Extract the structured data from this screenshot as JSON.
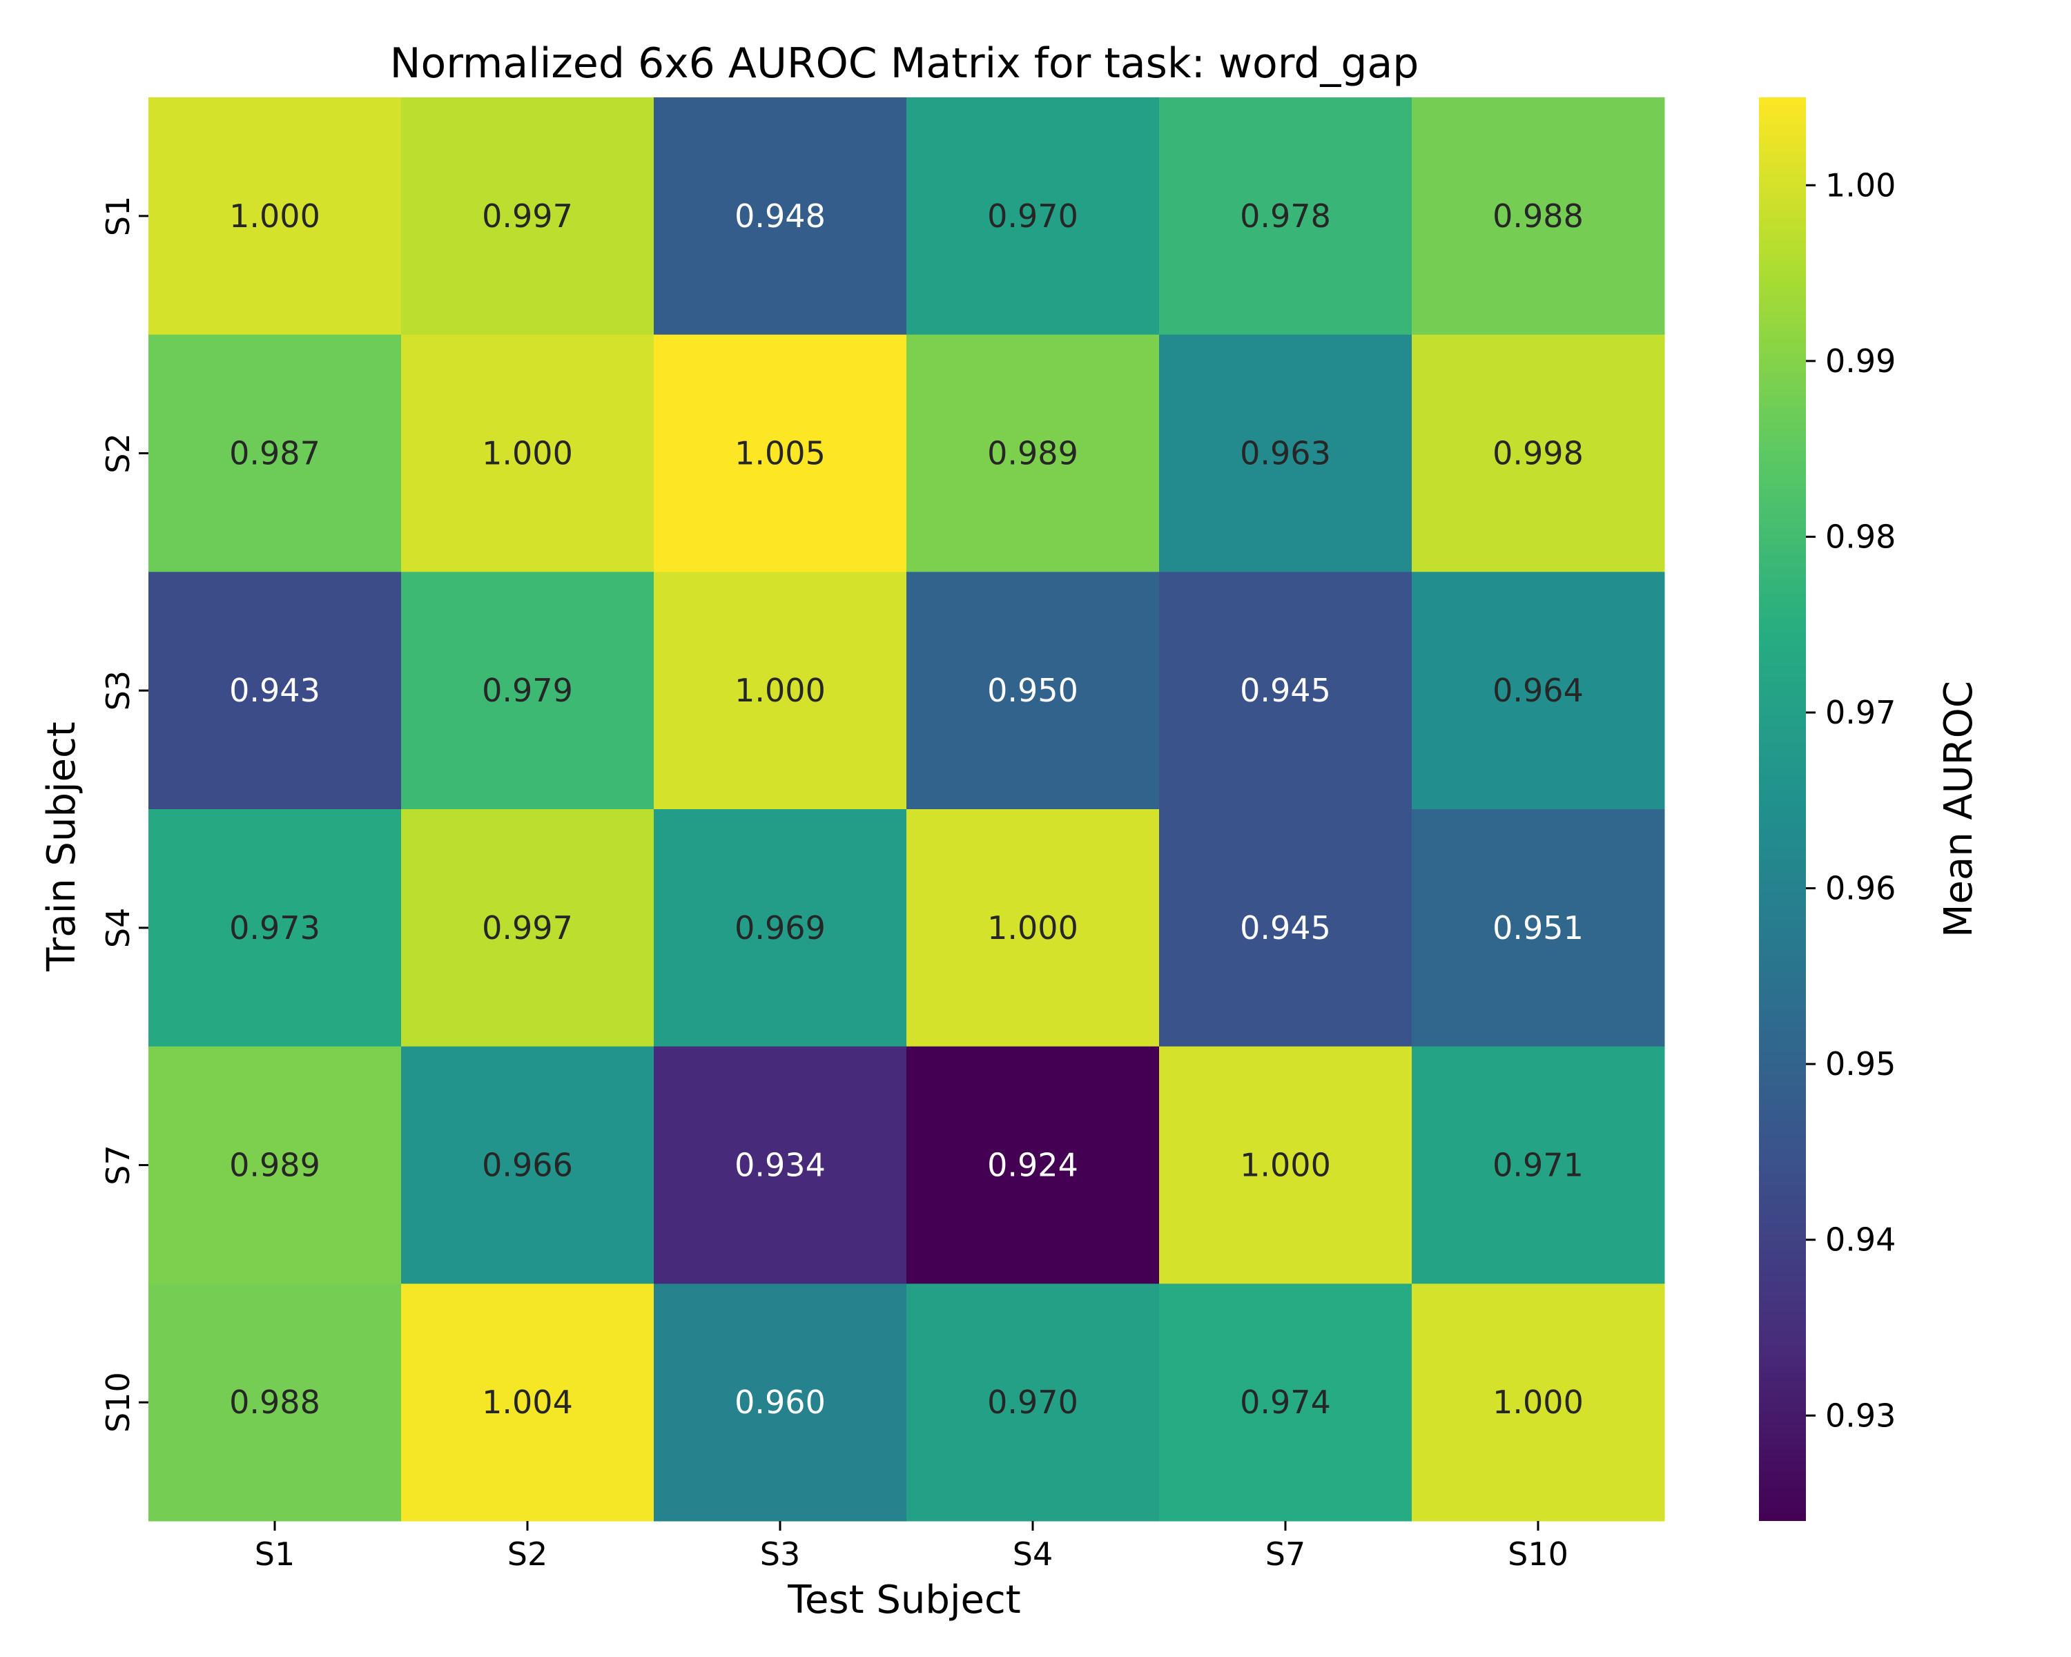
{
  "chart_data": {
    "type": "heatmap",
    "title": "Normalized 6x6 AUROC Matrix for task: word_gap",
    "xlabel": "Test Subject",
    "ylabel": "Train Subject",
    "x_categories": [
      "S1",
      "S2",
      "S3",
      "S4",
      "S7",
      "S10"
    ],
    "y_categories": [
      "S1",
      "S2",
      "S3",
      "S4",
      "S7",
      "S10"
    ],
    "values": [
      [
        1.0,
        0.997,
        0.948,
        0.97,
        0.978,
        0.988
      ],
      [
        0.987,
        1.0,
        1.005,
        0.989,
        0.963,
        0.998
      ],
      [
        0.943,
        0.979,
        1.0,
        0.95,
        0.945,
        0.964
      ],
      [
        0.973,
        0.997,
        0.969,
        1.0,
        0.945,
        0.951
      ],
      [
        0.989,
        0.966,
        0.934,
        0.924,
        1.0,
        0.971
      ],
      [
        0.988,
        1.004,
        0.96,
        0.97,
        0.974,
        1.0
      ]
    ],
    "value_format": "0.000",
    "colormap": "viridis",
    "colorbar": {
      "label": "Mean AUROC",
      "range": [
        0.924,
        1.005
      ],
      "ticks": [
        0.93,
        0.94,
        0.95,
        0.96,
        0.97,
        0.98,
        0.99,
        1.0
      ],
      "tick_labels": [
        "0.93",
        "0.94",
        "0.95",
        "0.96",
        "0.97",
        "0.98",
        "0.99",
        "1.00"
      ]
    },
    "annotation_colors": {
      "dark": "#262626",
      "light": "#ffffff"
    },
    "grid": false,
    "legend": "none"
  }
}
